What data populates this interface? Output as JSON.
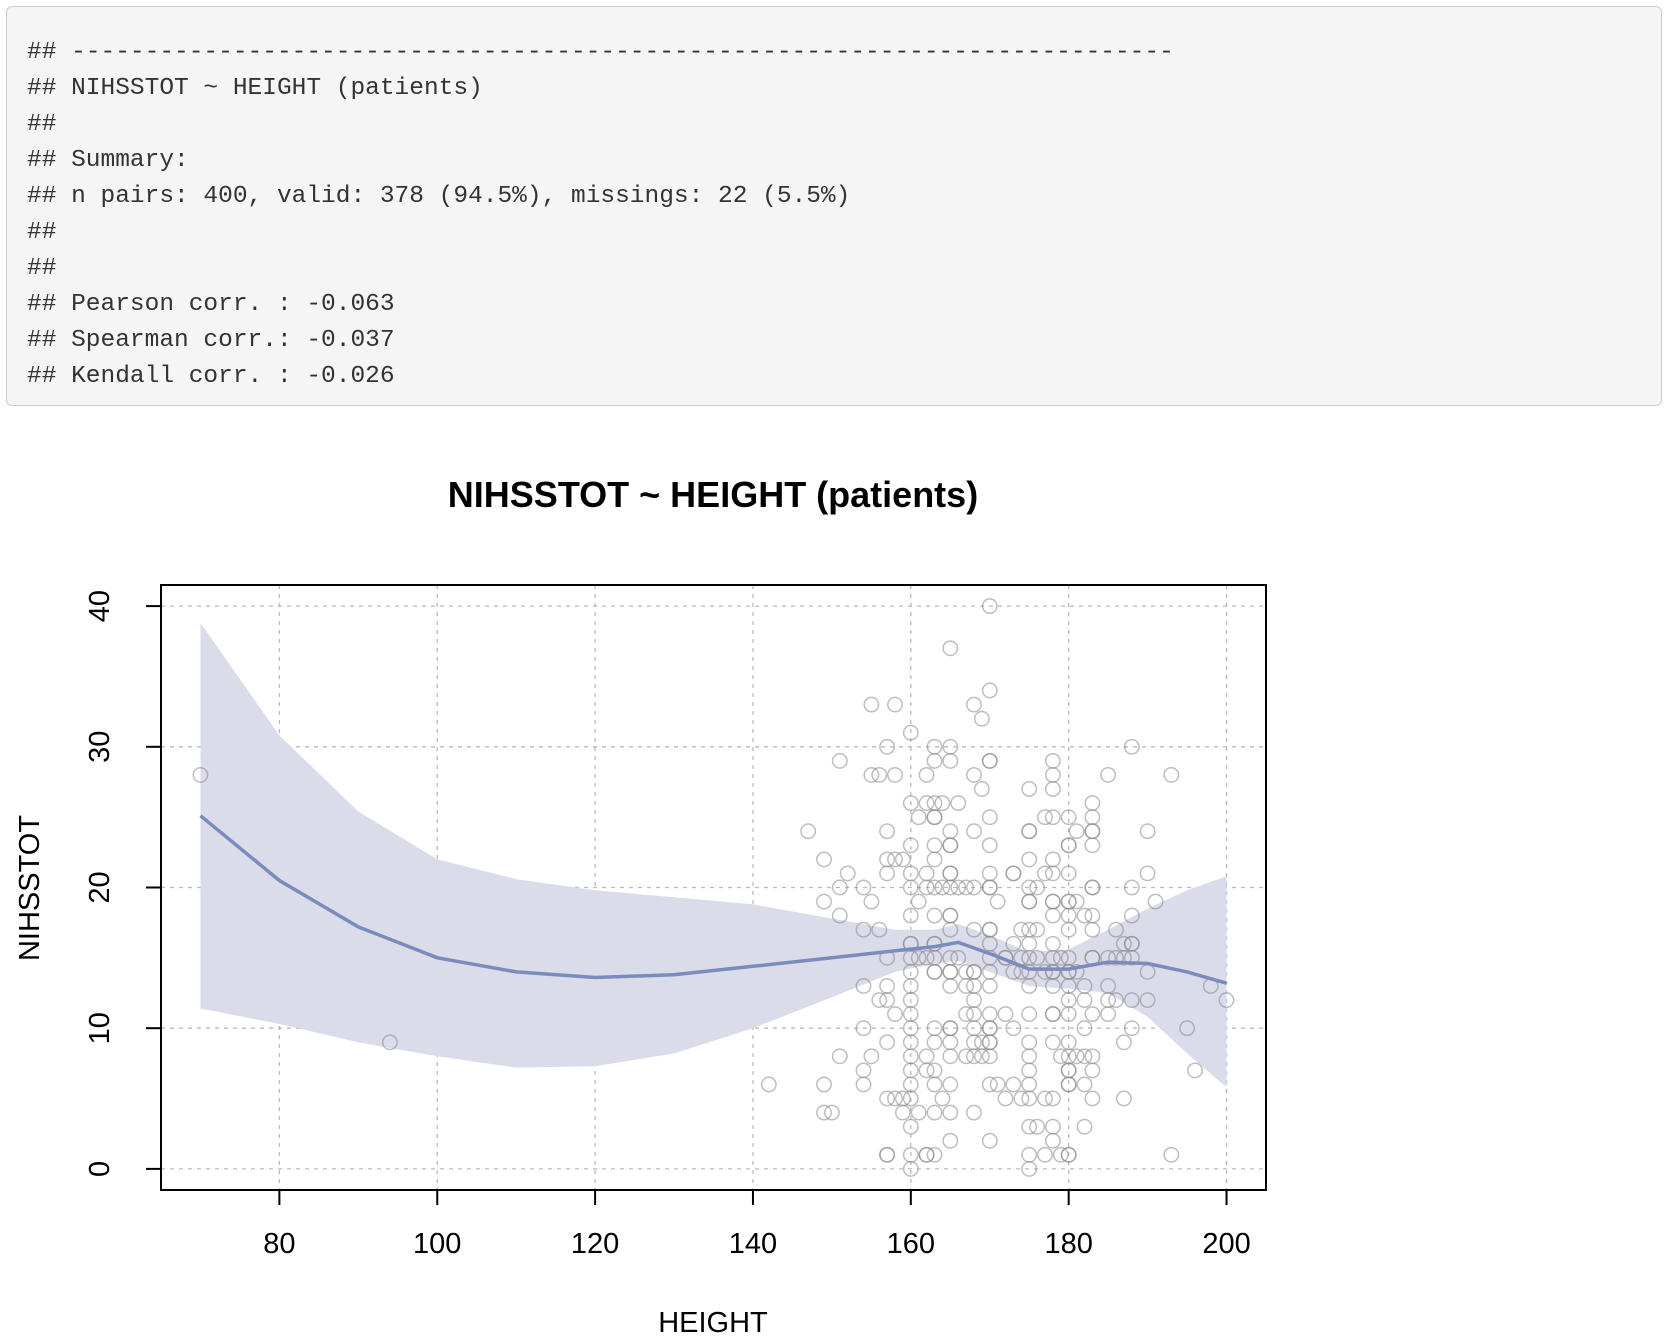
{
  "console": {
    "lines": [
      "## ---------------------------------------------------------------------------",
      "## NIHSSTOT ~ HEIGHT (patients)",
      "##",
      "## Summary:",
      "## n pairs: 400, valid: 378 (94.5%), missings: 22 (5.5%)",
      "##",
      "##",
      "## Pearson corr. : -0.063",
      "## Spearman corr.: -0.037",
      "## Kendall corr. : -0.026"
    ]
  },
  "chart_data": {
    "type": "scatter",
    "title": "NIHSSTOT ~ HEIGHT (patients)",
    "xlabel": "HEIGHT",
    "ylabel": "NIHSSTOT",
    "xlim": [
      65,
      205
    ],
    "ylim": [
      -1.5,
      41.5
    ],
    "xticks": [
      80,
      100,
      120,
      140,
      160,
      180,
      200
    ],
    "yticks": [
      0,
      10,
      20,
      30,
      40
    ],
    "grid": true,
    "colors": {
      "points": "#888888",
      "smooth_line": "#7a8bbd",
      "band": "#dadcea",
      "grid": "#bbbbbb"
    },
    "smooth": {
      "x": [
        70,
        80,
        90,
        100,
        110,
        120,
        130,
        140,
        150,
        158,
        163,
        166,
        170,
        175,
        180,
        185,
        190,
        195,
        200
      ],
      "y": [
        25.1,
        20.5,
        17.2,
        15.0,
        14.0,
        13.6,
        13.8,
        14.4,
        15.0,
        15.5,
        15.8,
        16.1,
        15.3,
        14.2,
        14.2,
        14.7,
        14.6,
        14.0,
        13.2
      ],
      "lower": [
        11.4,
        10.3,
        9.0,
        8.0,
        7.2,
        7.3,
        8.2,
        10.0,
        12.2,
        14.0,
        14.6,
        14.8,
        14.0,
        13.0,
        12.8,
        12.5,
        10.8,
        8.2,
        5.8
      ],
      "upper": [
        38.8,
        30.8,
        25.4,
        22.0,
        20.6,
        19.8,
        19.3,
        18.8,
        17.8,
        17.0,
        17.0,
        17.4,
        16.6,
        15.4,
        15.6,
        17.0,
        18.5,
        19.8,
        20.8
      ]
    },
    "points": [
      [
        70,
        28
      ],
      [
        94,
        9
      ],
      [
        142,
        6
      ],
      [
        147,
        24
      ],
      [
        149,
        22
      ],
      [
        149,
        19
      ],
      [
        149,
        6
      ],
      [
        149,
        4
      ],
      [
        150,
        4
      ],
      [
        151,
        29
      ],
      [
        151,
        20
      ],
      [
        151,
        18
      ],
      [
        151,
        8
      ],
      [
        152,
        21
      ],
      [
        154,
        20
      ],
      [
        154,
        17
      ],
      [
        154,
        13
      ],
      [
        154,
        10
      ],
      [
        154,
        6
      ],
      [
        154,
        7
      ],
      [
        155,
        33
      ],
      [
        155,
        28
      ],
      [
        155,
        19
      ],
      [
        155,
        8
      ],
      [
        156,
        28
      ],
      [
        156,
        17
      ],
      [
        156,
        12
      ],
      [
        157,
        30
      ],
      [
        157,
        24
      ],
      [
        157,
        22
      ],
      [
        157,
        21
      ],
      [
        157,
        15
      ],
      [
        157,
        13
      ],
      [
        157,
        12
      ],
      [
        157,
        9
      ],
      [
        157,
        5
      ],
      [
        157,
        1
      ],
      [
        157,
        1
      ],
      [
        158,
        33
      ],
      [
        158,
        28
      ],
      [
        158,
        22
      ],
      [
        158,
        11
      ],
      [
        158,
        5
      ],
      [
        159,
        22
      ],
      [
        159,
        5
      ],
      [
        159,
        4
      ],
      [
        160,
        31
      ],
      [
        160,
        26
      ],
      [
        160,
        23
      ],
      [
        160,
        21
      ],
      [
        160,
        20
      ],
      [
        160,
        18
      ],
      [
        160,
        16
      ],
      [
        160,
        16
      ],
      [
        160,
        15
      ],
      [
        160,
        14
      ],
      [
        160,
        13
      ],
      [
        160,
        12
      ],
      [
        160,
        11
      ],
      [
        160,
        10
      ],
      [
        160,
        9
      ],
      [
        160,
        8
      ],
      [
        160,
        7
      ],
      [
        160,
        6
      ],
      [
        160,
        5
      ],
      [
        160,
        3
      ],
      [
        160,
        1
      ],
      [
        160,
        0
      ],
      [
        161,
        25
      ],
      [
        161,
        19
      ],
      [
        161,
        15
      ],
      [
        161,
        4
      ],
      [
        162,
        28
      ],
      [
        162,
        26
      ],
      [
        162,
        21
      ],
      [
        162,
        20
      ],
      [
        162,
        15
      ],
      [
        162,
        8
      ],
      [
        162,
        7
      ],
      [
        162,
        1
      ],
      [
        162,
        1
      ],
      [
        163,
        30
      ],
      [
        163,
        29
      ],
      [
        163,
        26
      ],
      [
        163,
        25
      ],
      [
        163,
        25
      ],
      [
        163,
        23
      ],
      [
        163,
        22
      ],
      [
        163,
        20
      ],
      [
        163,
        18
      ],
      [
        163,
        16
      ],
      [
        163,
        16
      ],
      [
        163,
        15
      ],
      [
        163,
        14
      ],
      [
        163,
        14
      ],
      [
        163,
        10
      ],
      [
        163,
        9
      ],
      [
        163,
        7
      ],
      [
        163,
        6
      ],
      [
        163,
        4
      ],
      [
        163,
        1
      ],
      [
        164,
        26
      ],
      [
        164,
        20
      ],
      [
        164,
        5
      ],
      [
        165,
        37
      ],
      [
        165,
        30
      ],
      [
        165,
        29
      ],
      [
        165,
        24
      ],
      [
        165,
        23
      ],
      [
        165,
        23
      ],
      [
        165,
        21
      ],
      [
        165,
        21
      ],
      [
        165,
        20
      ],
      [
        165,
        18
      ],
      [
        165,
        18
      ],
      [
        165,
        17
      ],
      [
        165,
        15
      ],
      [
        165,
        14
      ],
      [
        165,
        14
      ],
      [
        165,
        13
      ],
      [
        165,
        10
      ],
      [
        165,
        10
      ],
      [
        165,
        9
      ],
      [
        165,
        8
      ],
      [
        165,
        6
      ],
      [
        165,
        4
      ],
      [
        165,
        2
      ],
      [
        166,
        26
      ],
      [
        166,
        20
      ],
      [
        166,
        15
      ],
      [
        167,
        20
      ],
      [
        167,
        14
      ],
      [
        167,
        13
      ],
      [
        167,
        11
      ],
      [
        167,
        8
      ],
      [
        168,
        33
      ],
      [
        168,
        28
      ],
      [
        168,
        24
      ],
      [
        168,
        20
      ],
      [
        168,
        17
      ],
      [
        168,
        14
      ],
      [
        168,
        14
      ],
      [
        168,
        13
      ],
      [
        168,
        12
      ],
      [
        168,
        11
      ],
      [
        168,
        10
      ],
      [
        168,
        9
      ],
      [
        168,
        8
      ],
      [
        168,
        4
      ],
      [
        169,
        32
      ],
      [
        169,
        27
      ],
      [
        169,
        9
      ],
      [
        169,
        8
      ],
      [
        170,
        40
      ],
      [
        170,
        34
      ],
      [
        170,
        29
      ],
      [
        170,
        29
      ],
      [
        170,
        25
      ],
      [
        170,
        23
      ],
      [
        170,
        21
      ],
      [
        170,
        20
      ],
      [
        170,
        20
      ],
      [
        170,
        17
      ],
      [
        170,
        17
      ],
      [
        170,
        16
      ],
      [
        170,
        15
      ],
      [
        170,
        14
      ],
      [
        170,
        13
      ],
      [
        170,
        11
      ],
      [
        170,
        10
      ],
      [
        170,
        10
      ],
      [
        170,
        9
      ],
      [
        170,
        9
      ],
      [
        170,
        8
      ],
      [
        170,
        6
      ],
      [
        170,
        2
      ],
      [
        171,
        19
      ],
      [
        171,
        6
      ],
      [
        172,
        15
      ],
      [
        172,
        15
      ],
      [
        172,
        11
      ],
      [
        172,
        5
      ],
      [
        173,
        21
      ],
      [
        173,
        21
      ],
      [
        173,
        16
      ],
      [
        173,
        14
      ],
      [
        173,
        10
      ],
      [
        173,
        6
      ],
      [
        174,
        17
      ],
      [
        174,
        15
      ],
      [
        174,
        14
      ],
      [
        174,
        5
      ],
      [
        175,
        27
      ],
      [
        175,
        24
      ],
      [
        175,
        24
      ],
      [
        175,
        22
      ],
      [
        175,
        20
      ],
      [
        175,
        19
      ],
      [
        175,
        19
      ],
      [
        175,
        17
      ],
      [
        175,
        16
      ],
      [
        175,
        15
      ],
      [
        175,
        14
      ],
      [
        175,
        13
      ],
      [
        175,
        11
      ],
      [
        175,
        9
      ],
      [
        175,
        8
      ],
      [
        175,
        7
      ],
      [
        175,
        6
      ],
      [
        175,
        5
      ],
      [
        175,
        3
      ],
      [
        175,
        1
      ],
      [
        175,
        0
      ],
      [
        176,
        20
      ],
      [
        176,
        17
      ],
      [
        176,
        15
      ],
      [
        176,
        3
      ],
      [
        177,
        25
      ],
      [
        177,
        21
      ],
      [
        177,
        14
      ],
      [
        177,
        5
      ],
      [
        177,
        1
      ],
      [
        178,
        29
      ],
      [
        178,
        28
      ],
      [
        178,
        27
      ],
      [
        178,
        25
      ],
      [
        178,
        22
      ],
      [
        178,
        21
      ],
      [
        178,
        19
      ],
      [
        178,
        19
      ],
      [
        178,
        18
      ],
      [
        178,
        16
      ],
      [
        178,
        15
      ],
      [
        178,
        14
      ],
      [
        178,
        14
      ],
      [
        178,
        13
      ],
      [
        178,
        11
      ],
      [
        178,
        11
      ],
      [
        178,
        9
      ],
      [
        178,
        5
      ],
      [
        178,
        3
      ],
      [
        178,
        2
      ],
      [
        179,
        15
      ],
      [
        179,
        8
      ],
      [
        179,
        1
      ],
      [
        180,
        25
      ],
      [
        180,
        23
      ],
      [
        180,
        23
      ],
      [
        180,
        21
      ],
      [
        180,
        19
      ],
      [
        180,
        19
      ],
      [
        180,
        18
      ],
      [
        180,
        17
      ],
      [
        180,
        15
      ],
      [
        180,
        14
      ],
      [
        180,
        14
      ],
      [
        180,
        13
      ],
      [
        180,
        12
      ],
      [
        180,
        11
      ],
      [
        180,
        9
      ],
      [
        180,
        8
      ],
      [
        180,
        7
      ],
      [
        180,
        7
      ],
      [
        180,
        6
      ],
      [
        180,
        6
      ],
      [
        180,
        1
      ],
      [
        180,
        1
      ],
      [
        181,
        19
      ],
      [
        181,
        24
      ],
      [
        181,
        14
      ],
      [
        181,
        8
      ],
      [
        182,
        18
      ],
      [
        182,
        13
      ],
      [
        182,
        12
      ],
      [
        182,
        10
      ],
      [
        182,
        8
      ],
      [
        182,
        6
      ],
      [
        182,
        3
      ],
      [
        183,
        26
      ],
      [
        183,
        25
      ],
      [
        183,
        24
      ],
      [
        183,
        24
      ],
      [
        183,
        23
      ],
      [
        183,
        20
      ],
      [
        183,
        20
      ],
      [
        183,
        18
      ],
      [
        183,
        17
      ],
      [
        183,
        15
      ],
      [
        183,
        15
      ],
      [
        183,
        11
      ],
      [
        183,
        8
      ],
      [
        183,
        7
      ],
      [
        183,
        5
      ],
      [
        185,
        28
      ],
      [
        185,
        15
      ],
      [
        185,
        13
      ],
      [
        185,
        12
      ],
      [
        185,
        11
      ],
      [
        186,
        17
      ],
      [
        186,
        15
      ],
      [
        186,
        12
      ],
      [
        187,
        16
      ],
      [
        187,
        15
      ],
      [
        187,
        9
      ],
      [
        187,
        5
      ],
      [
        188,
        30
      ],
      [
        188,
        20
      ],
      [
        188,
        18
      ],
      [
        188,
        16
      ],
      [
        188,
        16
      ],
      [
        188,
        15
      ],
      [
        188,
        12
      ],
      [
        188,
        10
      ],
      [
        190,
        24
      ],
      [
        190,
        21
      ],
      [
        190,
        14
      ],
      [
        190,
        12
      ],
      [
        191,
        19
      ],
      [
        193,
        28
      ],
      [
        193,
        1
      ],
      [
        195,
        10
      ],
      [
        196,
        7
      ],
      [
        198,
        13
      ],
      [
        200,
        12
      ]
    ]
  }
}
